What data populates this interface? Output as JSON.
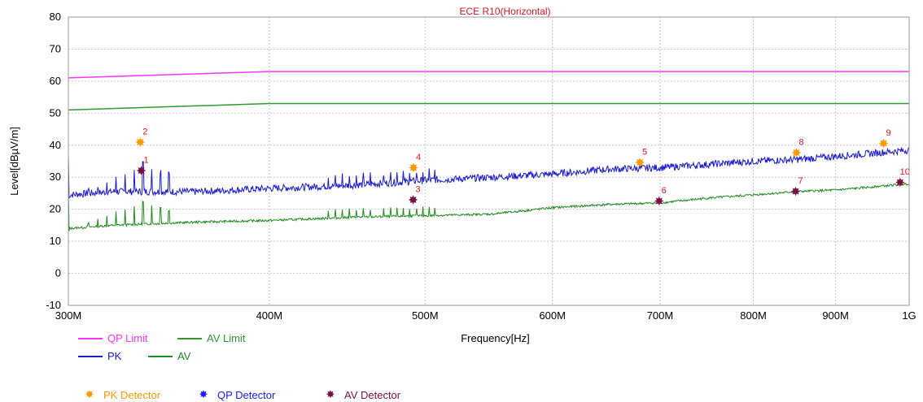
{
  "chart_data": {
    "type": "line",
    "title": "ECE R10(Horizontal)",
    "xlabel": "Frequency[Hz]",
    "ylabel": "Level[dBµV/m]",
    "x_scale": "log",
    "x_range_hz": [
      300000000,
      1000000000
    ],
    "ylim": [
      -10,
      80
    ],
    "grid": true,
    "x_ticks": [
      {
        "value": 300000000,
        "label": "300M"
      },
      {
        "value": 400000000,
        "label": "400M"
      },
      {
        "value": 500000000,
        "label": "500M"
      },
      {
        "value": 600000000,
        "label": "600M"
      },
      {
        "value": 700000000,
        "label": "700M"
      },
      {
        "value": 800000000,
        "label": "800M"
      },
      {
        "value": 900000000,
        "label": "900M"
      },
      {
        "value": 1000000000,
        "label": "1G"
      }
    ],
    "y_ticks": [
      -10,
      0,
      10,
      20,
      30,
      40,
      50,
      60,
      70,
      80
    ],
    "series": [
      {
        "name": "QP Limit",
        "color": "#ff33ff",
        "points": [
          [
            300000000,
            61
          ],
          [
            400000000,
            63
          ],
          [
            1000000000,
            63
          ]
        ]
      },
      {
        "name": "AV Limit",
        "color": "#2f9a2f",
        "points": [
          [
            300000000,
            51
          ],
          [
            400000000,
            53
          ],
          [
            1000000000,
            53
          ]
        ]
      },
      {
        "name": "PK",
        "color": "#1a1ad6",
        "points": [
          [
            300000000,
            24.5
          ],
          [
            320000000,
            25.5
          ],
          [
            340000000,
            25.5
          ],
          [
            360000000,
            25.5
          ],
          [
            400000000,
            26.5
          ],
          [
            450000000,
            27.5
          ],
          [
            500000000,
            29
          ],
          [
            550000000,
            30
          ],
          [
            600000000,
            31
          ],
          [
            650000000,
            32.5
          ],
          [
            700000000,
            33
          ],
          [
            750000000,
            34
          ],
          [
            800000000,
            35
          ],
          [
            850000000,
            35.5
          ],
          [
            900000000,
            36.5
          ],
          [
            950000000,
            37.5
          ],
          [
            1000000000,
            38.5
          ]
        ]
      },
      {
        "name": "AV",
        "color": "#1e8c1e",
        "points": [
          [
            300000000,
            14
          ],
          [
            320000000,
            15
          ],
          [
            340000000,
            15.5
          ],
          [
            360000000,
            16
          ],
          [
            400000000,
            16.5
          ],
          [
            450000000,
            17.5
          ],
          [
            500000000,
            18
          ],
          [
            550000000,
            18.5
          ],
          [
            600000000,
            20.5
          ],
          [
            650000000,
            21.5
          ],
          [
            700000000,
            22
          ],
          [
            750000000,
            23.5
          ],
          [
            800000000,
            24.5
          ],
          [
            850000000,
            25.5
          ],
          [
            900000000,
            26
          ],
          [
            950000000,
            27
          ],
          [
            1000000000,
            28
          ]
        ]
      }
    ],
    "markers": [
      {
        "id": "1",
        "detector": "AV",
        "freq_hz": 333000000,
        "level": 32
      },
      {
        "id": "2",
        "detector": "PK",
        "freq_hz": 332500000,
        "level": 40.8
      },
      {
        "id": "3",
        "detector": "AV",
        "freq_hz": 491500000,
        "level": 22.8
      },
      {
        "id": "4",
        "detector": "PK",
        "freq_hz": 491800000,
        "level": 32.8
      },
      {
        "id": "5",
        "detector": "PK",
        "freq_hz": 680000000,
        "level": 34.5
      },
      {
        "id": "6",
        "detector": "AV",
        "freq_hz": 699000000,
        "level": 22.5
      },
      {
        "id": "7",
        "detector": "AV",
        "freq_hz": 850000000,
        "level": 25.5
      },
      {
        "id": "8",
        "detector": "PK",
        "freq_hz": 851000000,
        "level": 37.5
      },
      {
        "id": "9",
        "detector": "PK",
        "freq_hz": 964000000,
        "level": 40.5
      },
      {
        "id": "10",
        "detector": "AV",
        "freq_hz": 987000000,
        "level": 28.3
      }
    ],
    "legend": {
      "placement": "bottom-left",
      "lines": [
        {
          "label": "QP Limit",
          "color": "#ff33ff"
        },
        {
          "label": "AV Limit",
          "color": "#2f9a2f"
        },
        {
          "label": "PK",
          "color": "#1a1ad6"
        },
        {
          "label": "AV",
          "color": "#1e8c1e"
        }
      ],
      "detectors": [
        {
          "label": "PK Detector",
          "color": "#ff9900"
        },
        {
          "label": "QP Detector",
          "color": "#1a1aff"
        },
        {
          "label": "AV Detector",
          "color": "#7a1040"
        }
      ]
    },
    "colors": {
      "title": "#e0161e",
      "marker_label": "#e0161e",
      "grid": "#c8c8c8",
      "pk_detector": "#ff9900",
      "qp_detector": "#1a1aff",
      "av_detector": "#7a1040"
    }
  }
}
